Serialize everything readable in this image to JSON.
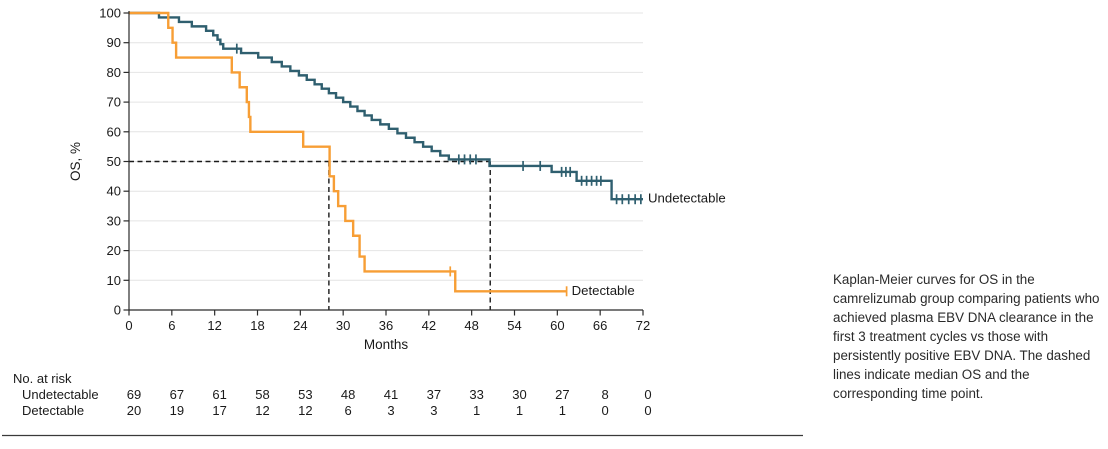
{
  "figure": {
    "caption": "Kaplan-Meier curves for OS in the camrelizumab group comparing patients who achieved plasma EBV DNA clearance in the first 3 treatment cycles vs those with persistently positive EBV DNA. The dashed lines indicate median OS and the corresponding time point."
  },
  "chart_data": {
    "type": "line",
    "variant": "kaplan_meier_step",
    "title": "",
    "xlabel": "Months",
    "ylabel": "OS, %",
    "xlim": [
      0,
      72
    ],
    "ylim": [
      0,
      100
    ],
    "xticks": [
      0,
      6,
      12,
      18,
      24,
      30,
      36,
      42,
      48,
      54,
      60,
      66,
      72
    ],
    "yticks": [
      0,
      10,
      20,
      30,
      40,
      50,
      60,
      70,
      80,
      90,
      100
    ],
    "grid": "horizontal",
    "legend_position": "end-of-curve",
    "colors": {
      "grid": "#E4E4E4",
      "axis": "#2B2B2B",
      "dashed": "#1A1A1A",
      "text": "#1A1A1A"
    },
    "series": [
      {
        "name": "Undetectable",
        "color": "#2F5F6F",
        "end_month": 72,
        "steps": [
          [
            0,
            100
          ],
          [
            4.2,
            98.5
          ],
          [
            7.0,
            97
          ],
          [
            8.8,
            95.5
          ],
          [
            10.8,
            94
          ],
          [
            11.8,
            92.5
          ],
          [
            12.4,
            91
          ],
          [
            12.8,
            89.5
          ],
          [
            13.2,
            88
          ],
          [
            15.7,
            86.5
          ],
          [
            18.1,
            85
          ],
          [
            20.0,
            83.5
          ],
          [
            21.4,
            82
          ],
          [
            22.6,
            80.5
          ],
          [
            23.8,
            79
          ],
          [
            24.9,
            77.5
          ],
          [
            26.0,
            76
          ],
          [
            27.0,
            74.5
          ],
          [
            28.0,
            73
          ],
          [
            29.0,
            71.5
          ],
          [
            30.0,
            70
          ],
          [
            31.0,
            68.5
          ],
          [
            32.0,
            67
          ],
          [
            33.0,
            65.5
          ],
          [
            34.0,
            64
          ],
          [
            35.2,
            62.5
          ],
          [
            36.4,
            61
          ],
          [
            37.6,
            59.5
          ],
          [
            38.8,
            58
          ],
          [
            40.0,
            56.5
          ],
          [
            41.2,
            55
          ],
          [
            42.4,
            53.5
          ],
          [
            43.6,
            52
          ],
          [
            44.8,
            50.7
          ],
          [
            50.5,
            48.5
          ],
          [
            59.2,
            46.5
          ],
          [
            62.7,
            43.5
          ],
          [
            67.6,
            37.3
          ]
        ],
        "censors": [
          [
            15.1,
            88
          ],
          [
            46.2,
            50.7
          ],
          [
            47.0,
            50.7
          ],
          [
            47.8,
            50.7
          ],
          [
            48.6,
            50.7
          ],
          [
            55.2,
            48.5
          ],
          [
            57.6,
            48.5
          ],
          [
            60.6,
            46.5
          ],
          [
            61.2,
            46.5
          ],
          [
            61.8,
            46.5
          ],
          [
            63.4,
            43.5
          ],
          [
            64.1,
            43.5
          ],
          [
            64.8,
            43.5
          ],
          [
            65.5,
            43.5
          ],
          [
            66.1,
            43.5
          ],
          [
            68.3,
            37.3
          ],
          [
            69.1,
            37.3
          ],
          [
            70.0,
            37.3
          ],
          [
            70.9,
            37.3
          ],
          [
            71.7,
            37.3
          ]
        ]
      },
      {
        "name": "Detectable",
        "color": "#F79E35",
        "end_month": 61.3,
        "steps": [
          [
            0,
            100
          ],
          [
            5.5,
            95
          ],
          [
            6.1,
            90
          ],
          [
            6.6,
            85
          ],
          [
            14.4,
            80
          ],
          [
            15.5,
            75
          ],
          [
            16.5,
            70
          ],
          [
            16.8,
            65
          ],
          [
            17.0,
            60
          ],
          [
            24.4,
            55
          ],
          [
            28.1,
            45
          ],
          [
            28.7,
            40
          ],
          [
            29.3,
            35
          ],
          [
            30.3,
            30
          ],
          [
            31.4,
            25
          ],
          [
            32.3,
            18
          ],
          [
            33.0,
            13
          ],
          [
            45.7,
            6.3
          ]
        ],
        "censors": [
          [
            45.0,
            13
          ],
          [
            61.3,
            6.3
          ]
        ]
      }
    ],
    "annotations": {
      "median_survival_pct": 50,
      "median_months": [
        28,
        50.6
      ]
    },
    "at_risk": {
      "title": "No. at risk",
      "months": [
        0,
        6,
        12,
        18,
        24,
        30,
        36,
        42,
        48,
        54,
        60,
        66,
        72
      ],
      "rows": [
        {
          "name": "Undetectable",
          "counts": [
            69,
            67,
            61,
            58,
            53,
            48,
            41,
            37,
            33,
            30,
            27,
            8,
            0
          ]
        },
        {
          "name": "Detectable",
          "counts": [
            20,
            19,
            17,
            12,
            12,
            6,
            3,
            3,
            1,
            1,
            1,
            0,
            0
          ]
        }
      ]
    }
  }
}
